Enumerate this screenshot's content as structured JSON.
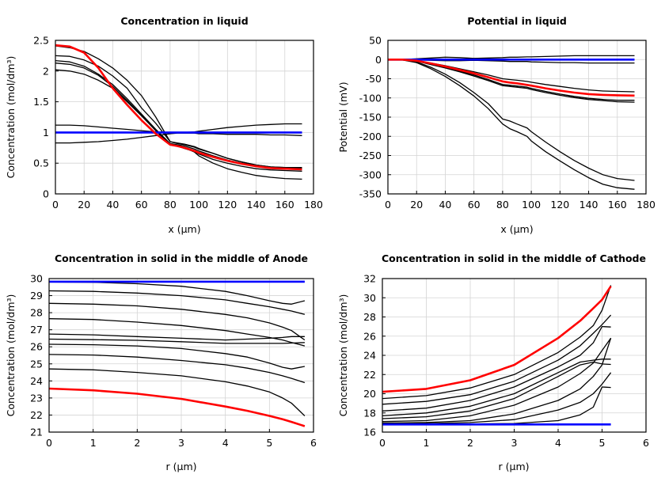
{
  "chart_data": [
    {
      "type": "line",
      "title": "Concentration in liquid",
      "xlabel": "x (µm)",
      "ylabel": "Concentration (mol/dm³)",
      "xlim": [
        0,
        180
      ],
      "ylim": [
        0,
        2.5
      ],
      "xticks": [
        0,
        20,
        40,
        60,
        80,
        100,
        120,
        140,
        160,
        180
      ],
      "yticks": [
        0,
        0.5,
        1,
        1.5,
        2,
        2.5
      ],
      "ytick_labels": [
        "0",
        "0.5",
        "1",
        "1.5",
        "2",
        "2.5"
      ],
      "grid": true,
      "x": [
        0,
        10,
        20,
        30,
        40,
        50,
        60,
        70,
        80,
        85,
        90,
        97,
        100,
        110,
        120,
        130,
        140,
        150,
        160,
        172
      ],
      "series": [
        {
          "color": "#000000",
          "values": [
            2.41,
            2.38,
            2.32,
            2.2,
            2.05,
            1.85,
            1.6,
            1.25,
            0.85,
            0.82,
            0.8,
            0.76,
            0.73,
            0.66,
            0.58,
            0.52,
            0.47,
            0.44,
            0.43,
            0.43
          ]
        },
        {
          "color": "#000000",
          "values": [
            2.25,
            2.24,
            2.18,
            2.08,
            1.92,
            1.72,
            1.4,
            1.15,
            0.85,
            0.83,
            0.81,
            0.77,
            0.74,
            0.66,
            0.58,
            0.52,
            0.47,
            0.44,
            0.43,
            0.43
          ]
        },
        {
          "color": "#000000",
          "values": [
            2.17,
            2.15,
            2.08,
            1.95,
            1.78,
            1.55,
            1.3,
            1.05,
            0.82,
            0.79,
            0.75,
            0.68,
            0.62,
            0.5,
            0.41,
            0.35,
            0.3,
            0.27,
            0.25,
            0.24
          ]
        },
        {
          "color": "#000000",
          "values": [
            2.13,
            2.11,
            2.05,
            1.93,
            1.75,
            1.52,
            1.28,
            1.03,
            0.8,
            0.78,
            0.74,
            0.69,
            0.65,
            0.56,
            0.5,
            0.45,
            0.41,
            0.39,
            0.38,
            0.37
          ]
        },
        {
          "color": "#000000",
          "values": [
            2.02,
            2.0,
            1.95,
            1.85,
            1.72,
            1.5,
            1.27,
            1.03,
            0.82,
            0.8,
            0.78,
            0.73,
            0.7,
            0.62,
            0.55,
            0.5,
            0.46,
            0.43,
            0.42,
            0.42
          ]
        },
        {
          "color": "#000000",
          "values": [
            1.12,
            1.12,
            1.11,
            1.09,
            1.07,
            1.05,
            1.03,
            1.01,
            1.0,
            1.0,
            1.0,
            1.01,
            1.02,
            1.05,
            1.08,
            1.1,
            1.12,
            1.13,
            1.14,
            1.14
          ]
        },
        {
          "color": "#000000",
          "values": [
            0.83,
            0.83,
            0.84,
            0.85,
            0.87,
            0.89,
            0.92,
            0.95,
            0.98,
            0.99,
            0.99,
            0.99,
            0.98,
            0.98,
            0.97,
            0.97,
            0.97,
            0.96,
            0.96,
            0.95
          ]
        },
        {
          "color": "#0000ff",
          "values": [
            1,
            1,
            1,
            1,
            1,
            1,
            1,
            1,
            1,
            1,
            1,
            1,
            1,
            1,
            1,
            1,
            1,
            1,
            1,
            1
          ]
        },
        {
          "color": "#ff0000",
          "values": [
            2.42,
            2.4,
            2.3,
            2.05,
            1.72,
            1.45,
            1.2,
            0.98,
            0.8,
            0.78,
            0.75,
            0.7,
            0.67,
            0.6,
            0.54,
            0.49,
            0.45,
            0.42,
            0.41,
            0.4
          ]
        }
      ]
    },
    {
      "type": "line",
      "title": "Potential in liquid",
      "xlabel": "x (µm)",
      "ylabel": "Potential (mV)",
      "xlim": [
        0,
        180
      ],
      "ylim": [
        -350,
        50
      ],
      "xticks": [
        0,
        20,
        40,
        60,
        80,
        100,
        120,
        140,
        160,
        180
      ],
      "yticks": [
        -350,
        -300,
        -250,
        -200,
        -150,
        -100,
        -50,
        0,
        50
      ],
      "ytick_labels": [
        "-350",
        "-300",
        "-250",
        "-200",
        "-150",
        "-100",
        "-50",
        "0",
        "50"
      ],
      "grid": true,
      "x": [
        0,
        10,
        20,
        30,
        40,
        50,
        60,
        70,
        80,
        85,
        90,
        97,
        100,
        110,
        120,
        130,
        140,
        150,
        160,
        172
      ],
      "series": [
        {
          "color": "#000000",
          "values": [
            0,
            0,
            2,
            4,
            6,
            5,
            3,
            4,
            5,
            6,
            6,
            7,
            7,
            8,
            9,
            10,
            10,
            10,
            10,
            10
          ]
        },
        {
          "color": "#000000",
          "values": [
            0,
            0,
            -1,
            -2,
            -3,
            -3,
            -2,
            -3,
            -4,
            -5,
            -5,
            -5,
            -6,
            -7,
            -8,
            -8,
            -9,
            -9,
            -9,
            -9
          ]
        },
        {
          "color": "#000000",
          "values": [
            0,
            0,
            -3,
            -9,
            -16,
            -24,
            -32,
            -40,
            -50,
            -52,
            -54,
            -57,
            -59,
            -65,
            -70,
            -75,
            -79,
            -82,
            -83,
            -84
          ]
        },
        {
          "color": "#000000",
          "values": [
            0,
            0,
            -4,
            -12,
            -20,
            -30,
            -40,
            -52,
            -65,
            -67,
            -69,
            -72,
            -75,
            -83,
            -90,
            -96,
            -101,
            -104,
            -106,
            -106
          ]
        },
        {
          "color": "#000000",
          "values": [
            0,
            0,
            -4,
            -13,
            -22,
            -32,
            -43,
            -55,
            -68,
            -70,
            -72,
            -75,
            -78,
            -86,
            -93,
            -99,
            -104,
            -107,
            -110,
            -111
          ]
        },
        {
          "color": "#000000",
          "values": [
            0,
            0,
            -6,
            -20,
            -38,
            -60,
            -86,
            -115,
            -155,
            -160,
            -168,
            -178,
            -188,
            -215,
            -240,
            -263,
            -283,
            -300,
            -310,
            -315
          ]
        },
        {
          "color": "#000000",
          "values": [
            0,
            -1,
            -8,
            -24,
            -44,
            -68,
            -95,
            -128,
            -168,
            -180,
            -188,
            -200,
            -212,
            -240,
            -264,
            -287,
            -308,
            -325,
            -334,
            -338
          ]
        },
        {
          "color": "#0000ff",
          "values": [
            0,
            0,
            0,
            0,
            0,
            0,
            0,
            0,
            0,
            0,
            0,
            0,
            0,
            0,
            0,
            0,
            0,
            0,
            0,
            0
          ]
        },
        {
          "color": "#ff0000",
          "values": [
            0,
            0,
            -3,
            -10,
            -18,
            -27,
            -36,
            -46,
            -57,
            -60,
            -62,
            -66,
            -68,
            -75,
            -81,
            -86,
            -90,
            -92,
            -93,
            -94
          ]
        }
      ]
    },
    {
      "type": "line",
      "title": "Concentration in solid in the middle of Anode",
      "xlabel": "r (µm)",
      "ylabel": "Concentration (mol/dm³)",
      "xlim": [
        0,
        6
      ],
      "ylim": [
        21,
        30
      ],
      "xticks": [
        0,
        1,
        2,
        3,
        4,
        5,
        6
      ],
      "yticks": [
        21,
        22,
        23,
        24,
        25,
        26,
        27,
        28,
        29,
        30
      ],
      "ytick_labels": [
        "21",
        "22",
        "23",
        "24",
        "25",
        "26",
        "27",
        "28",
        "29",
        "30"
      ],
      "grid": true,
      "x": [
        0,
        1,
        2,
        3,
        4,
        4.5,
        5,
        5.3,
        5.5,
        5.8
      ],
      "series": [
        {
          "color": "#000000",
          "values": [
            29.8,
            29.78,
            29.7,
            29.55,
            29.25,
            29.0,
            28.7,
            28.55,
            28.5,
            28.7
          ]
        },
        {
          "color": "#000000",
          "values": [
            29.28,
            29.25,
            29.15,
            29.0,
            28.75,
            28.55,
            28.35,
            28.2,
            28.1,
            27.9
          ]
        },
        {
          "color": "#000000",
          "values": [
            28.55,
            28.5,
            28.4,
            28.2,
            27.9,
            27.7,
            27.4,
            27.15,
            26.95,
            26.4
          ]
        },
        {
          "color": "#000000",
          "values": [
            27.65,
            27.6,
            27.45,
            27.25,
            26.95,
            26.75,
            26.55,
            26.4,
            26.25,
            26.05
          ]
        },
        {
          "color": "#000000",
          "values": [
            26.75,
            26.7,
            26.6,
            26.5,
            26.4,
            26.45,
            26.5,
            26.55,
            26.6,
            26.6
          ]
        },
        {
          "color": "#000000",
          "values": [
            26.45,
            26.42,
            26.38,
            26.3,
            26.2,
            26.2,
            26.2,
            26.2,
            26.22,
            26.25
          ]
        },
        {
          "color": "#000000",
          "values": [
            26.15,
            26.12,
            26.05,
            25.9,
            25.6,
            25.4,
            25.05,
            24.8,
            24.7,
            24.85
          ]
        },
        {
          "color": "#000000",
          "values": [
            25.55,
            25.52,
            25.4,
            25.2,
            24.95,
            24.75,
            24.5,
            24.3,
            24.15,
            23.9
          ]
        },
        {
          "color": "#000000",
          "values": [
            24.7,
            24.65,
            24.5,
            24.3,
            23.95,
            23.7,
            23.35,
            23.0,
            22.7,
            21.95
          ]
        },
        {
          "color": "#0000ff",
          "values": [
            29.82,
            29.82,
            29.82,
            29.82,
            29.82,
            29.82,
            29.82,
            29.82,
            29.82,
            29.82
          ]
        },
        {
          "color": "#ff0000",
          "values": [
            23.55,
            23.45,
            23.25,
            22.95,
            22.5,
            22.25,
            21.95,
            21.75,
            21.6,
            21.35
          ]
        }
      ]
    },
    {
      "type": "line",
      "title": "Concentration in solid in the middle of Cathode",
      "xlabel": "r (µm)",
      "ylabel": "Concentration (mol/dm³)",
      "xlim": [
        0,
        6
      ],
      "ylim": [
        16,
        32
      ],
      "xticks": [
        0,
        1,
        2,
        3,
        4,
        5,
        6
      ],
      "yticks": [
        16,
        18,
        20,
        22,
        24,
        26,
        28,
        30,
        32
      ],
      "ytick_labels": [
        "16",
        "18",
        "20",
        "22",
        "24",
        "26",
        "28",
        "30",
        "32"
      ],
      "grid": true,
      "x": [
        0,
        1,
        2,
        3,
        4,
        4.5,
        4.8,
        5.0,
        5.2
      ],
      "series": [
        {
          "color": "#000000",
          "values": [
            19.5,
            19.8,
            20.6,
            22.0,
            24.3,
            25.9,
            27.1,
            28.7,
            31.3
          ]
        },
        {
          "color": "#000000",
          "values": [
            18.9,
            19.2,
            19.9,
            21.3,
            23.5,
            25.0,
            26.3,
            27.2,
            28.2
          ]
        },
        {
          "color": "#000000",
          "values": [
            18.2,
            18.5,
            19.3,
            20.7,
            22.8,
            24.0,
            25.3,
            27.0,
            26.95
          ]
        },
        {
          "color": "#000000",
          "values": [
            17.7,
            18.0,
            18.7,
            20.0,
            22.2,
            23.3,
            23.5,
            23.6,
            23.6
          ]
        },
        {
          "color": "#000000",
          "values": [
            17.4,
            17.6,
            18.2,
            19.5,
            21.8,
            23.0,
            23.3,
            23.1,
            23.05
          ]
        },
        {
          "color": "#000000",
          "values": [
            17.1,
            17.2,
            17.7,
            18.8,
            20.7,
            22.1,
            23.2,
            24.5,
            25.8
          ]
        },
        {
          "color": "#000000",
          "values": [
            16.95,
            17.0,
            17.2,
            17.9,
            19.3,
            20.5,
            21.8,
            23.0,
            25.8
          ]
        },
        {
          "color": "#000000",
          "values": [
            16.85,
            16.9,
            17.0,
            17.3,
            18.3,
            19.1,
            20.0,
            21.0,
            22.2
          ]
        },
        {
          "color": "#000000",
          "values": [
            16.8,
            16.8,
            16.85,
            16.9,
            17.2,
            17.8,
            18.6,
            20.7,
            20.65
          ]
        },
        {
          "color": "#0000ff",
          "values": [
            16.8,
            16.8,
            16.8,
            16.8,
            16.8,
            16.8,
            16.8,
            16.8,
            16.8
          ]
        },
        {
          "color": "#ff0000",
          "values": [
            20.2,
            20.5,
            21.4,
            23.0,
            25.8,
            27.6,
            28.9,
            29.8,
            31.2
          ]
        }
      ]
    }
  ]
}
